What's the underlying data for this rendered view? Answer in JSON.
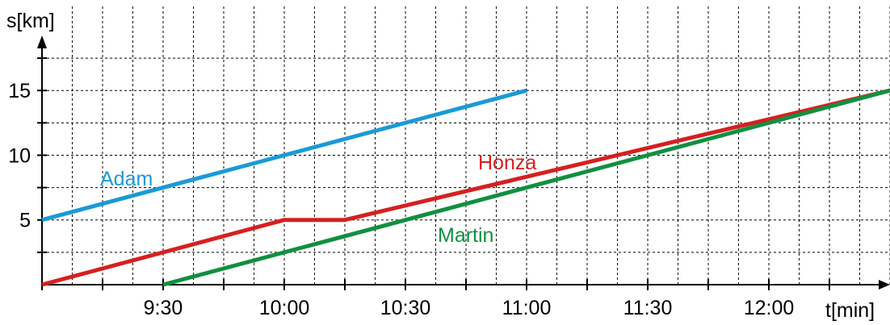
{
  "chart_data": {
    "type": "line",
    "title": "",
    "xlabel": "t[min]",
    "ylabel": "s[km]",
    "x_unit": "clock time (h:mm)",
    "xlim": [
      "9:00",
      "12:30"
    ],
    "ylim": [
      0,
      19
    ],
    "x_ticks": [
      "9:30",
      "10:00",
      "10:30",
      "11:00",
      "11:30",
      "12:00"
    ],
    "y_ticks": [
      "5",
      "10",
      "15"
    ],
    "grid": true,
    "series": [
      {
        "name": "Adam",
        "color": "#1a9ad6",
        "points": [
          {
            "x": "9:00",
            "y": 5
          },
          {
            "x": "11:00",
            "y": 15
          }
        ]
      },
      {
        "name": "Honza",
        "color": "#d62020",
        "points": [
          {
            "x": "9:00",
            "y": 0
          },
          {
            "x": "10:00",
            "y": 5
          },
          {
            "x": "10:15",
            "y": 5
          },
          {
            "x": "12:30",
            "y": 15
          }
        ]
      },
      {
        "name": "Martin",
        "color": "#109040",
        "points": [
          {
            "x": "9:30",
            "y": 0
          },
          {
            "x": "12:30",
            "y": 15
          }
        ]
      }
    ]
  }
}
